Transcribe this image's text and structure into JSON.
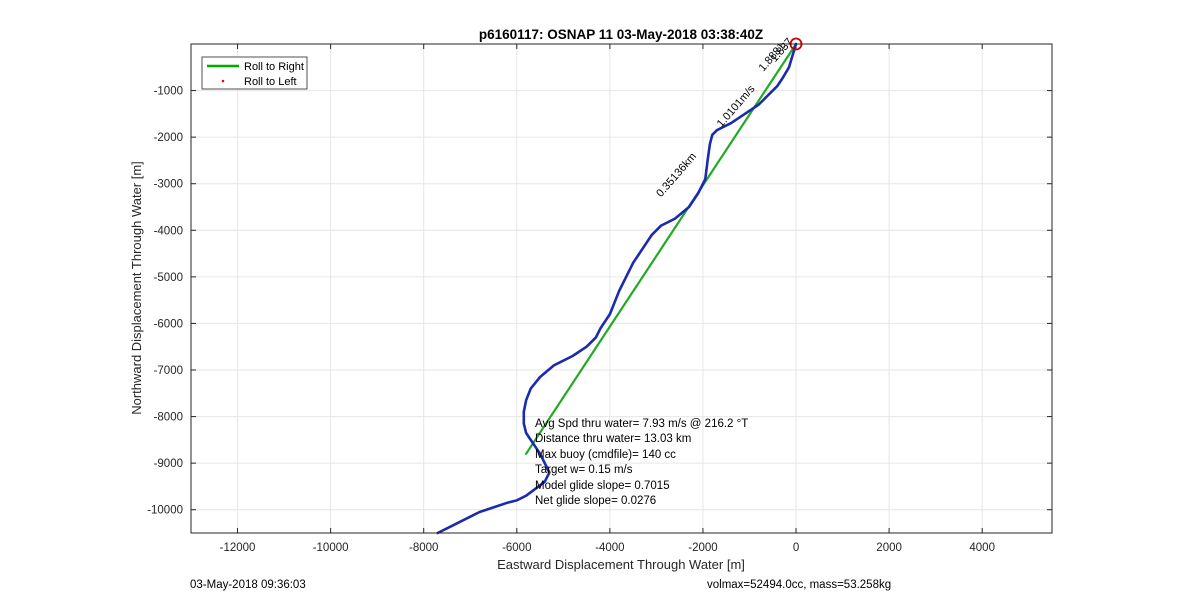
{
  "chart_data": {
    "type": "line",
    "title": "p6160117: OSNAP 11 03-May-2018 03:38:40Z",
    "xlabel": "Eastward Displacement Through Water [m]",
    "ylabel": "Northward Displacement Through Water [m]",
    "xlim": [
      -13000,
      5500
    ],
    "ylim": [
      -10500,
      0
    ],
    "xticks": [
      -12000,
      -10000,
      -8000,
      -6000,
      -4000,
      -2000,
      0,
      2000,
      4000
    ],
    "xtick_labels": [
      "-12000",
      "-10000",
      "-8000",
      "-6000",
      "-4000",
      "-2000",
      "0",
      "2000",
      "4000"
    ],
    "yticks": [
      -1000,
      -2000,
      -3000,
      -4000,
      -5000,
      -6000,
      -7000,
      -8000,
      -9000,
      -10000
    ],
    "ytick_labels": [
      "-1000",
      "-2000",
      "-3000",
      "-4000",
      "-5000",
      "-6000",
      "-7000",
      "-8000",
      "-9000",
      "-10000"
    ],
    "grid": true,
    "legend": {
      "location": "top-left",
      "entries": [
        {
          "label": "Roll to Right",
          "color": "#00aa00",
          "style": "line"
        },
        {
          "label": "Roll to Left",
          "color": "#ff0000",
          "style": "dot"
        }
      ]
    },
    "series": [
      {
        "name": "Roll to Right",
        "color": "#22aa22",
        "x": [
          0,
          -5800
        ],
        "y": [
          0,
          -8800
        ]
      },
      {
        "color": "#1a2bb0",
        "x": [
          0,
          -150,
          -300,
          -400,
          -600,
          -800,
          -1100,
          -1400,
          -1600,
          -1700,
          -1800,
          -1850,
          -1900,
          -1950,
          -2100,
          -2300,
          -2600,
          -2900,
          -3100,
          -3500,
          -3800,
          -4000,
          -4200,
          -4300,
          -4500,
          -4800,
          -5200,
          -5500,
          -5700,
          -5800,
          -5850,
          -5850,
          -5800,
          -5700,
          -5600,
          -5500,
          -5400,
          -5300,
          -5400,
          -5600,
          -5800,
          -6000,
          -6200,
          -6500,
          -6800,
          -7000,
          -7300,
          -7700
        ],
        "y": [
          0,
          -500,
          -750,
          -900,
          -1100,
          -1300,
          -1500,
          -1700,
          -1800,
          -1850,
          -1950,
          -2150,
          -2500,
          -2900,
          -3200,
          -3500,
          -3750,
          -3900,
          -4100,
          -4700,
          -5300,
          -5800,
          -6100,
          -6300,
          -6500,
          -6700,
          -6900,
          -7150,
          -7400,
          -7650,
          -7900,
          -8150,
          -8350,
          -8500,
          -8650,
          -8800,
          -9000,
          -9200,
          -9400,
          -9550,
          -9700,
          -9800,
          -9850,
          -9950,
          -10050,
          -10150,
          -10300,
          -10500
        ]
      }
    ],
    "markers": [
      {
        "shape": "circle",
        "color": "#cc0000",
        "x": 0,
        "y": 0
      }
    ],
    "annotations": [
      {
        "text": "0.35136km",
        "x": -2900,
        "y": -3300,
        "angle": -49
      },
      {
        "text": "1.0101m/s",
        "x": -1600,
        "y": -1800,
        "angle": -49
      },
      {
        "text": "1.8881",
        "x": -700,
        "y": -600,
        "angle": -49
      },
      {
        "text": "1.837",
        "x": -450,
        "y": -400,
        "angle": -49
      }
    ],
    "stats": [
      "Avg Spd thru water=  7.93 m/s @ 216.2 °T",
      "Distance thru water= 13.03 km",
      "Max buoy (cmdfile)= 140 cc",
      "Target w= 0.15 m/s",
      "Model glide slope= 0.7015",
      "Net glide slope= 0.0276"
    ]
  },
  "footer": {
    "timestamp": "03-May-2018 09:36:03",
    "info": "volmax=52494.0cc, mass=53.258kg"
  }
}
